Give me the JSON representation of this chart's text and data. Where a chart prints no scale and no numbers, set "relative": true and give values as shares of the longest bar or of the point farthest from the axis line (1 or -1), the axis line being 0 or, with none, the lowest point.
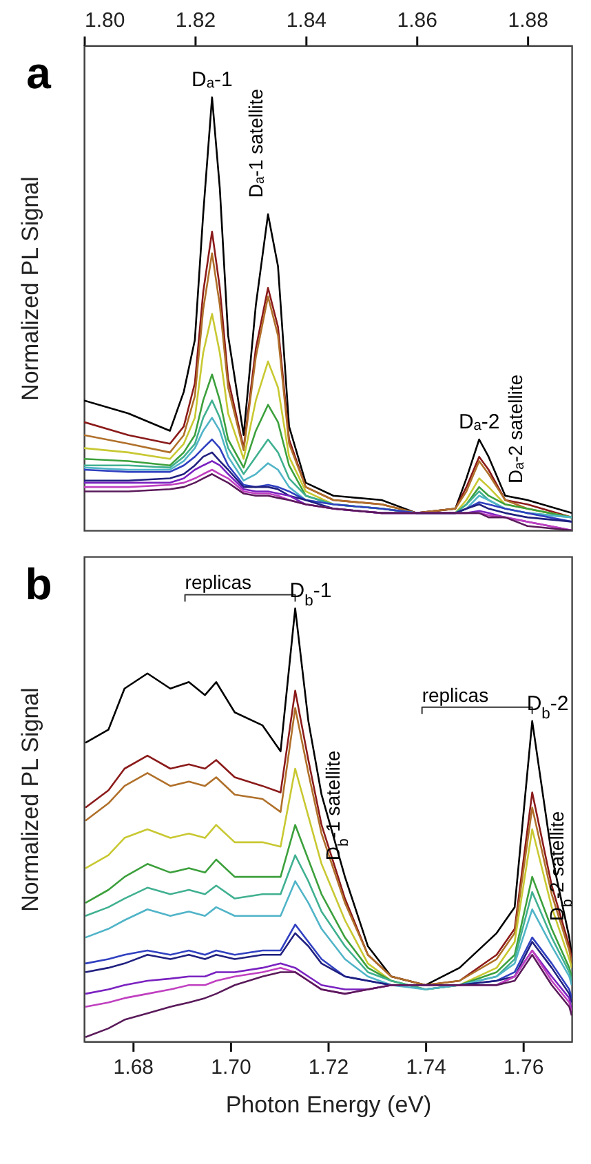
{
  "chart_data": [
    {
      "type": "line",
      "title": "a",
      "ylabel": "Normalized PL Signal",
      "relative": true,
      "xlim": [
        1.8,
        1.888
      ],
      "xticks": [
        {
          "value": 1.8,
          "label": "1.80"
        },
        1.82,
        1.84,
        1.86,
        1.88
      ],
      "x": [
        1.8,
        1.808,
        1.8155,
        1.818,
        1.82,
        1.8215,
        1.8231,
        1.8245,
        1.826,
        1.8288,
        1.831,
        1.8332,
        1.835,
        1.837,
        1.84,
        1.845,
        1.8537,
        1.86,
        1.867,
        1.869,
        1.8713,
        1.873,
        1.876,
        1.88,
        1.888
      ],
      "series": [
        {
          "color": "#000000",
          "values": [
            0.3,
            0.27,
            0.23,
            0.32,
            0.44,
            0.73,
            1.0,
            0.79,
            0.45,
            0.22,
            0.52,
            0.73,
            0.61,
            0.24,
            0.11,
            0.08,
            0.07,
            0.04,
            0.05,
            0.12,
            0.21,
            0.17,
            0.08,
            0.07,
            0.04
          ]
        },
        {
          "color": "#8b1a1a",
          "values": [
            0.25,
            0.22,
            0.2,
            0.24,
            0.34,
            0.55,
            0.69,
            0.56,
            0.35,
            0.19,
            0.42,
            0.56,
            0.47,
            0.21,
            0.1,
            0.07,
            0.06,
            0.04,
            0.05,
            0.1,
            0.17,
            0.14,
            0.07,
            0.06,
            0.03
          ]
        },
        {
          "color": "#b0702a",
          "values": [
            0.22,
            0.2,
            0.18,
            0.22,
            0.31,
            0.51,
            0.64,
            0.52,
            0.33,
            0.185,
            0.4,
            0.54,
            0.45,
            0.2,
            0.1,
            0.07,
            0.06,
            0.04,
            0.05,
            0.09,
            0.16,
            0.13,
            0.07,
            0.05,
            0.03
          ]
        },
        {
          "color": "#c8c832",
          "values": [
            0.19,
            0.18,
            0.165,
            0.2,
            0.26,
            0.41,
            0.5,
            0.41,
            0.27,
            0.165,
            0.3,
            0.39,
            0.33,
            0.17,
            0.09,
            0.06,
            0.05,
            0.04,
            0.04,
            0.07,
            0.12,
            0.1,
            0.06,
            0.05,
            0.03
          ]
        },
        {
          "color": "#3ca03c",
          "values": [
            0.165,
            0.16,
            0.15,
            0.18,
            0.22,
            0.3,
            0.36,
            0.3,
            0.21,
            0.145,
            0.23,
            0.29,
            0.25,
            0.15,
            0.08,
            0.06,
            0.05,
            0.04,
            0.04,
            0.06,
            0.1,
            0.08,
            0.06,
            0.05,
            0.03
          ]
        },
        {
          "color": "#40b090",
          "values": [
            0.15,
            0.15,
            0.145,
            0.17,
            0.2,
            0.26,
            0.3,
            0.26,
            0.19,
            0.13,
            0.17,
            0.21,
            0.18,
            0.12,
            0.08,
            0.06,
            0.05,
            0.04,
            0.04,
            0.06,
            0.09,
            0.07,
            0.05,
            0.04,
            0.03
          ]
        },
        {
          "color": "#50b4c8",
          "values": [
            0.145,
            0.14,
            0.14,
            0.16,
            0.19,
            0.23,
            0.26,
            0.23,
            0.17,
            0.115,
            0.13,
            0.155,
            0.14,
            0.1,
            0.07,
            0.06,
            0.05,
            0.04,
            0.04,
            0.05,
            0.08,
            0.07,
            0.05,
            0.04,
            0.03
          ]
        },
        {
          "color": "#3040c0",
          "values": [
            0.14,
            0.135,
            0.135,
            0.15,
            0.17,
            0.19,
            0.21,
            0.19,
            0.15,
            0.105,
            0.1,
            0.105,
            0.1,
            0.09,
            0.07,
            0.06,
            0.05,
            0.04,
            0.04,
            0.05,
            0.065,
            0.06,
            0.05,
            0.04,
            0.02
          ]
        },
        {
          "color": "#202080",
          "values": [
            0.115,
            0.115,
            0.12,
            0.13,
            0.15,
            0.17,
            0.18,
            0.16,
            0.14,
            0.1,
            0.1,
            0.1,
            0.095,
            0.08,
            0.07,
            0.05,
            0.04,
            0.04,
            0.04,
            0.05,
            0.06,
            0.05,
            0.04,
            0.03,
            0.02
          ]
        },
        {
          "color": "#7a22c0",
          "values": [
            0.11,
            0.11,
            0.11,
            0.12,
            0.14,
            0.15,
            0.16,
            0.15,
            0.13,
            0.095,
            0.09,
            0.09,
            0.085,
            0.08,
            0.06,
            0.05,
            0.04,
            0.04,
            0.04,
            0.04,
            0.045,
            0.04,
            0.03,
            0.02,
            0.0
          ]
        },
        {
          "color": "#c040c0",
          "values": [
            0.1,
            0.1,
            0.105,
            0.11,
            0.12,
            0.13,
            0.14,
            0.13,
            0.12,
            0.09,
            0.085,
            0.085,
            0.08,
            0.07,
            0.06,
            0.05,
            0.04,
            0.04,
            0.04,
            0.04,
            0.04,
            0.035,
            0.03,
            0.02,
            0.0
          ]
        },
        {
          "color": "#5a1a5a",
          "values": [
            0.09,
            0.09,
            0.095,
            0.1,
            0.11,
            0.12,
            0.13,
            0.12,
            0.11,
            0.085,
            0.08,
            0.08,
            0.075,
            0.07,
            0.06,
            0.05,
            0.04,
            0.04,
            0.04,
            0.04,
            0.04,
            0.03,
            0.03,
            0.01,
            0.0
          ]
        }
      ],
      "annotations": [
        {
          "text": "Dₐ-1",
          "x": 1.8231,
          "y": 1.0
        },
        {
          "text": "Dₐ-1 satellite",
          "x": 1.8332,
          "y": 0.73
        },
        {
          "text": "Dₐ-2",
          "x": 1.8713,
          "y": 0.21
        },
        {
          "text": "Dₐ-2 satellite",
          "x": 1.88,
          "y": 0.07
        }
      ]
    },
    {
      "type": "line",
      "title": "b",
      "xlabel": "Photon Energy (eV)",
      "ylabel": "Normalized PL Signal",
      "relative": true,
      "xlim": [
        1.67,
        1.77
      ],
      "xticks": [
        1.68,
        {
          "value": 1.7,
          "label": "1.70"
        },
        1.72,
        1.74,
        1.76
      ],
      "x": [
        1.6703,
        1.675,
        1.6783,
        1.683,
        1.6877,
        1.6915,
        1.6948,
        1.6971,
        1.7009,
        1.7066,
        1.7103,
        1.7133,
        1.716,
        1.7187,
        1.7235,
        1.7282,
        1.733,
        1.74,
        1.747,
        1.7546,
        1.7583,
        1.7619,
        1.7659,
        1.7695,
        1.77
      ],
      "series": [
        {
          "color": "#000000",
          "values": [
            0.69,
            0.72,
            0.815,
            0.85,
            0.815,
            0.83,
            0.8,
            0.83,
            0.76,
            0.73,
            0.67,
            1.0,
            0.74,
            0.57,
            0.38,
            0.22,
            0.15,
            0.13,
            0.17,
            0.25,
            0.31,
            0.74,
            0.43,
            0.24,
            0.2
          ]
        },
        {
          "color": "#8b1a1a",
          "values": [
            0.54,
            0.58,
            0.63,
            0.66,
            0.63,
            0.64,
            0.63,
            0.65,
            0.61,
            0.59,
            0.575,
            0.81,
            0.65,
            0.5,
            0.33,
            0.2,
            0.15,
            0.13,
            0.14,
            0.2,
            0.26,
            0.575,
            0.36,
            0.22,
            0.19
          ]
        },
        {
          "color": "#b0702a",
          "values": [
            0.51,
            0.55,
            0.59,
            0.62,
            0.59,
            0.6,
            0.59,
            0.61,
            0.57,
            0.56,
            0.53,
            0.77,
            0.62,
            0.48,
            0.32,
            0.2,
            0.15,
            0.13,
            0.14,
            0.19,
            0.25,
            0.54,
            0.34,
            0.21,
            0.18
          ]
        },
        {
          "color": "#c8c832",
          "values": [
            0.4,
            0.43,
            0.47,
            0.49,
            0.47,
            0.48,
            0.47,
            0.5,
            0.46,
            0.46,
            0.45,
            0.63,
            0.52,
            0.41,
            0.28,
            0.18,
            0.14,
            0.12,
            0.13,
            0.17,
            0.23,
            0.49,
            0.31,
            0.19,
            0.17
          ]
        },
        {
          "color": "#3ca03c",
          "values": [
            0.32,
            0.35,
            0.38,
            0.41,
            0.39,
            0.4,
            0.39,
            0.42,
            0.38,
            0.38,
            0.38,
            0.5,
            0.42,
            0.34,
            0.24,
            0.17,
            0.14,
            0.12,
            0.13,
            0.16,
            0.2,
            0.38,
            0.26,
            0.17,
            0.15
          ]
        },
        {
          "color": "#40b090",
          "values": [
            0.29,
            0.31,
            0.33,
            0.355,
            0.34,
            0.35,
            0.34,
            0.36,
            0.33,
            0.34,
            0.34,
            0.43,
            0.37,
            0.3,
            0.22,
            0.16,
            0.14,
            0.12,
            0.13,
            0.15,
            0.19,
            0.345,
            0.24,
            0.16,
            0.14
          ]
        },
        {
          "color": "#50b4c8",
          "values": [
            0.24,
            0.26,
            0.28,
            0.305,
            0.29,
            0.3,
            0.29,
            0.31,
            0.29,
            0.29,
            0.29,
            0.37,
            0.32,
            0.26,
            0.19,
            0.15,
            0.13,
            0.12,
            0.13,
            0.15,
            0.18,
            0.305,
            0.22,
            0.15,
            0.13
          ]
        },
        {
          "color": "#3040c0",
          "values": [
            0.18,
            0.19,
            0.2,
            0.21,
            0.2,
            0.21,
            0.2,
            0.21,
            0.2,
            0.21,
            0.21,
            0.27,
            0.23,
            0.19,
            0.15,
            0.14,
            0.13,
            0.13,
            0.13,
            0.14,
            0.16,
            0.24,
            0.18,
            0.12,
            0.1
          ]
        },
        {
          "color": "#202080",
          "values": [
            0.16,
            0.17,
            0.18,
            0.2,
            0.19,
            0.2,
            0.19,
            0.2,
            0.19,
            0.2,
            0.2,
            0.25,
            0.22,
            0.18,
            0.15,
            0.14,
            0.13,
            0.13,
            0.13,
            0.14,
            0.15,
            0.23,
            0.17,
            0.11,
            0.09
          ]
        },
        {
          "color": "#7a22c0",
          "values": [
            0.11,
            0.12,
            0.13,
            0.14,
            0.145,
            0.15,
            0.15,
            0.16,
            0.16,
            0.17,
            0.18,
            0.17,
            0.15,
            0.13,
            0.12,
            0.12,
            0.13,
            0.13,
            0.13,
            0.13,
            0.15,
            0.21,
            0.15,
            0.1,
            0.07
          ]
        },
        {
          "color": "#c040c0",
          "values": [
            0.08,
            0.09,
            0.1,
            0.11,
            0.12,
            0.13,
            0.13,
            0.14,
            0.15,
            0.16,
            0.17,
            0.16,
            0.14,
            0.12,
            0.11,
            0.12,
            0.13,
            0.13,
            0.13,
            0.13,
            0.15,
            0.21,
            0.14,
            0.09,
            0.065
          ]
        },
        {
          "color": "#5a1a5a",
          "values": [
            0.01,
            0.03,
            0.05,
            0.065,
            0.08,
            0.09,
            0.1,
            0.11,
            0.13,
            0.15,
            0.16,
            0.16,
            0.14,
            0.12,
            0.11,
            0.12,
            0.13,
            0.13,
            0.13,
            0.13,
            0.14,
            0.2,
            0.13,
            0.08,
            0.06
          ]
        }
      ],
      "annotations": [
        "replicas",
        {
          "text": "D$_{b}$-1",
          "x": 1.7133,
          "y": 1.0
        },
        {
          "text": "D$_{b}$-1 satellite",
          "x": 1.7235,
          "y": 0.38
        },
        "replicas",
        {
          "text": "D$_{b}$-2",
          "x": 1.7619,
          "y": 0.74
        },
        {
          "text": "D$_{b}$-2 satellite",
          "x": 1.7695,
          "y": 0.24
        }
      ]
    }
  ]
}
